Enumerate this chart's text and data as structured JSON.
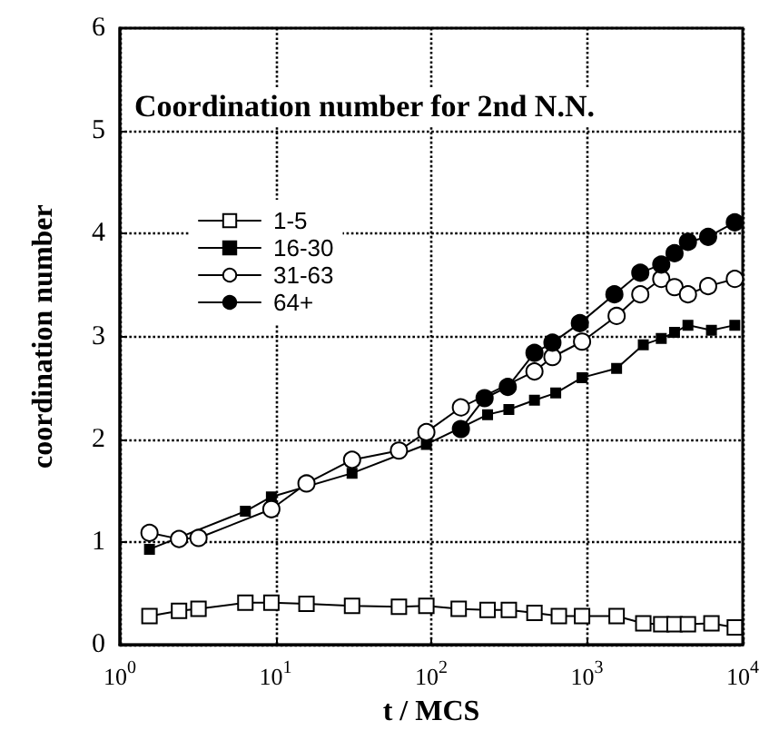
{
  "chart_data": {
    "type": "line",
    "title": "Coordination number for 2nd N.N.",
    "xlabel": "t / MCS",
    "ylabel": "coordination number",
    "log": "x",
    "grid": true,
    "legend": "top left",
    "line_style": "solid",
    "xlim": [
      1,
      10000
    ],
    "ylim": [
      0,
      6
    ],
    "xticks": [
      {
        "value": 1,
        "label": "10$^{0}$"
      },
      {
        "value": 10,
        "label": "10$^{1}$"
      },
      {
        "value": 100,
        "label": "10$^{2}$"
      },
      {
        "value": 1000,
        "label": "10$^{3}$"
      },
      {
        "value": 10000,
        "label": "10$^{4}$"
      }
    ],
    "yticks": [
      0,
      1,
      2,
      3,
      4,
      5,
      6
    ],
    "series": [
      {
        "name": "1-5",
        "color": "#ffffff",
        "marker": "square",
        "x": [
          1.55,
          2.4,
          3.2,
          6.4,
          9.4,
          15.8,
          31,
          62,
          93,
          150,
          230,
          315,
          460,
          660,
          930,
          1550,
          2300,
          3000,
          3650,
          4450,
          6300,
          8900
        ],
        "values": [
          0.28,
          0.33,
          0.35,
          0.41,
          0.41,
          0.4,
          0.38,
          0.37,
          0.38,
          0.35,
          0.34,
          0.34,
          0.31,
          0.28,
          0.28,
          0.28,
          0.21,
          0.2,
          0.2,
          0.2,
          0.21,
          0.17
        ]
      },
      {
        "name": "16-30",
        "color": "#000000",
        "marker": "square",
        "x": [
          1.55,
          6.4,
          9.4,
          31,
          93,
          230,
          315,
          460,
          630,
          930,
          1550,
          2300,
          3000,
          3650,
          4450,
          6300,
          8900
        ],
        "values": [
          0.93,
          1.3,
          1.44,
          1.67,
          1.95,
          2.24,
          2.29,
          2.38,
          2.45,
          2.6,
          2.69,
          2.92,
          2.98,
          3.04,
          3.11,
          3.06,
          3.11
        ]
      },
      {
        "name": "31-63",
        "color": "#ffffff",
        "marker": "circle",
        "x": [
          1.55,
          2.4,
          3.2,
          9.4,
          15.8,
          31,
          62,
          93,
          155,
          460,
          600,
          930,
          1550,
          2200,
          3000,
          3650,
          4450,
          6000,
          8900
        ],
        "values": [
          1.09,
          1.03,
          1.04,
          1.32,
          1.57,
          1.8,
          1.89,
          2.07,
          2.31,
          2.66,
          2.8,
          2.95,
          3.2,
          3.41,
          3.56,
          3.48,
          3.41,
          3.49,
          3.56
        ]
      },
      {
        "name": "64+",
        "color": "#000000",
        "marker": "circle",
        "x": [
          155,
          220,
          310,
          460,
          600,
          900,
          1500,
          2200,
          3000,
          3650,
          4450,
          6000,
          8900
        ],
        "values": [
          2.1,
          2.4,
          2.51,
          2.84,
          2.94,
          3.13,
          3.41,
          3.62,
          3.7,
          3.81,
          3.92,
          3.97,
          4.11
        ]
      }
    ]
  }
}
